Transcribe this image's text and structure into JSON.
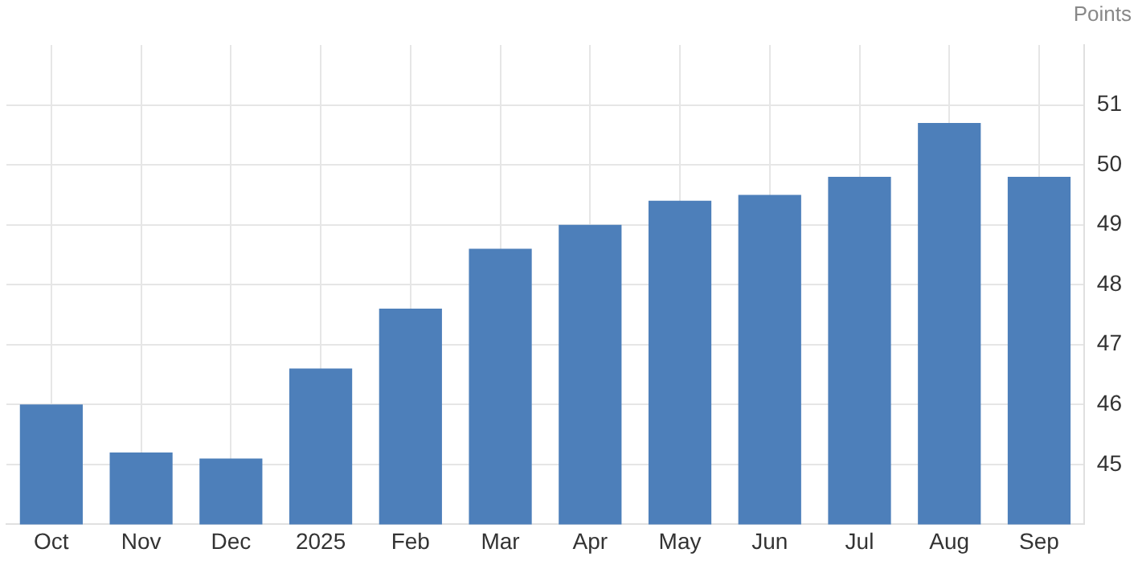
{
  "chart_data": {
    "type": "bar",
    "ylabel": "Points",
    "categories": [
      "Oct",
      "Nov",
      "Dec",
      "2025",
      "Feb",
      "Mar",
      "Apr",
      "May",
      "Jun",
      "Jul",
      "Aug",
      "Sep"
    ],
    "values": [
      46.0,
      45.2,
      45.1,
      46.6,
      47.6,
      48.6,
      49.0,
      49.4,
      49.5,
      49.8,
      50.7,
      49.8
    ],
    "color": "#4d7fba",
    "ylim": [
      44,
      52
    ],
    "yticks": [
      45,
      46,
      47,
      48,
      49,
      50,
      51
    ],
    "grid": true,
    "legend": false
  }
}
